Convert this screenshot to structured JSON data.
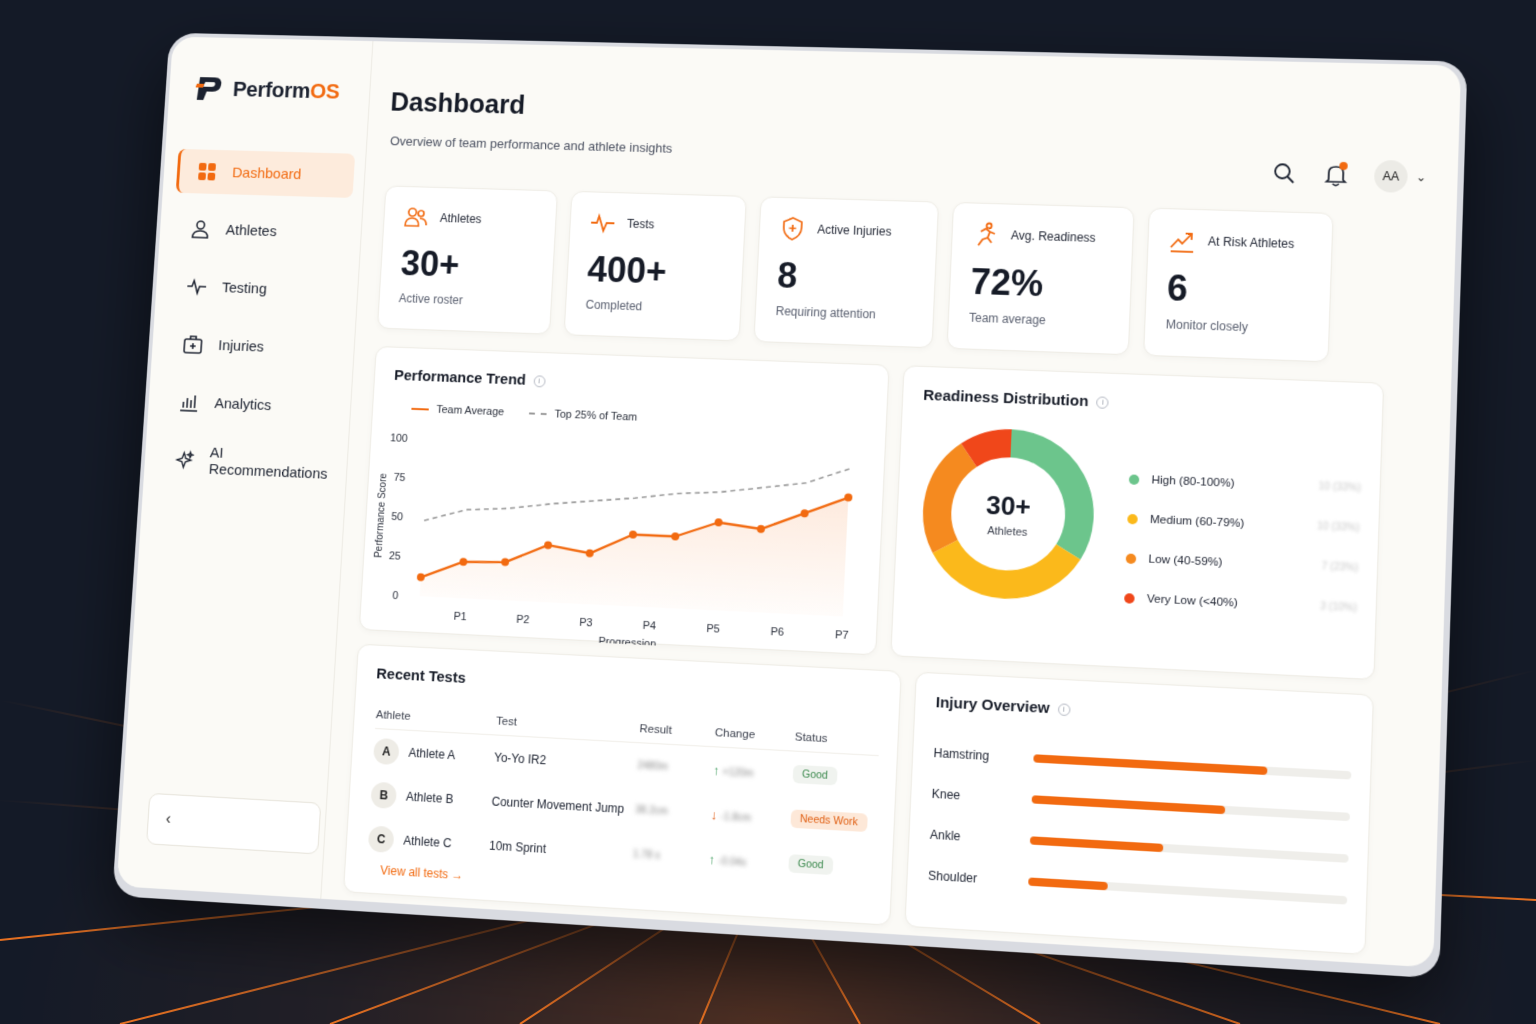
{
  "app": {
    "logo_main": "Perform",
    "logo_accent": "OS"
  },
  "colors": {
    "accent": "#f26a10",
    "high": "#6cc58c",
    "medium": "#fbb91b",
    "low": "#f58a1f",
    "very_low": "#f0471a"
  },
  "sidebar": {
    "items": [
      {
        "label": "Dashboard",
        "icon": "grid-icon",
        "active": true
      },
      {
        "label": "Athletes",
        "icon": "user-icon"
      },
      {
        "label": "Testing",
        "icon": "pulse-icon"
      },
      {
        "label": "Injuries",
        "icon": "medkit-icon"
      },
      {
        "label": "Analytics",
        "icon": "bar-chart-icon"
      },
      {
        "label": "AI Recommendations",
        "icon": "sparkle-icon"
      }
    ],
    "collapse_glyph": "‹"
  },
  "header": {
    "title": "Dashboard",
    "subtitle": "Overview of team performance and athlete insights",
    "avatar": "AA",
    "dropdown_glyph": "⌄"
  },
  "stats": [
    {
      "label": "Athletes",
      "value": "30+",
      "caption": "Active roster",
      "icon": "users-icon"
    },
    {
      "label": "Tests",
      "value": "400+",
      "caption": "Completed",
      "icon": "pulse-icon"
    },
    {
      "label": "Active Injuries",
      "value": "8",
      "caption": "Requiring attention",
      "icon": "shield-icon"
    },
    {
      "label": "Avg. Readiness",
      "value": "72%",
      "caption": "Team average",
      "icon": "runner-icon"
    },
    {
      "label": "At Risk Athletes",
      "value": "6",
      "caption": "Monitor closely",
      "icon": "trend-up-icon"
    }
  ],
  "performance": {
    "title": "Performance Trend",
    "info": "i",
    "legend": {
      "team": "Team Average",
      "top": "Top 25% of Team"
    }
  },
  "chart_data": {
    "type": "line",
    "title": "Performance Trend",
    "xlabel": "Progression",
    "ylabel": "Performance Score",
    "ylim": [
      0,
      100
    ],
    "yticks": [
      "100",
      "75",
      "50",
      "25",
      "0"
    ],
    "xtick_labels": [
      "P1",
      "P2",
      "P3",
      "P4",
      "P5",
      "P6",
      "P7"
    ],
    "x": [
      0,
      1,
      2,
      3,
      4,
      5,
      6,
      7,
      8,
      9,
      10
    ],
    "series": [
      {
        "name": "Team Average",
        "style": "solid",
        "color": "#f26a10",
        "values": [
          12,
          23,
          24,
          36,
          32,
          45,
          45,
          55,
          52,
          63,
          74
        ]
      },
      {
        "name": "Top 25% of Team",
        "style": "dashed",
        "color": "#9a9a9a",
        "values": [
          48,
          56,
          58,
          62,
          65,
          68,
          72,
          74,
          78,
          82,
          92
        ]
      }
    ],
    "legend_position": "top-left",
    "grid": false
  },
  "readiness": {
    "title": "Readiness Distribution",
    "info": "i",
    "center_value": "30+",
    "center_label": "Athletes",
    "segments": [
      {
        "label": "High (80-100%)",
        "value": 10,
        "count": "10 (33%)",
        "color": "#6cc58c"
      },
      {
        "label": "Medium (60-79%)",
        "value": 10,
        "count": "10 (33%)",
        "color": "#fbb91b"
      },
      {
        "label": "Low (40-59%)",
        "value": 7,
        "count": "7 (23%)",
        "color": "#f58a1f"
      },
      {
        "label": "Very Low (<40%)",
        "value": 3,
        "count": "3 (10%)",
        "color": "#f0471a"
      }
    ]
  },
  "recent_tests": {
    "title": "Recent Tests",
    "columns": [
      "Athlete",
      "Test",
      "Result",
      "Change",
      "Status"
    ],
    "rows": [
      {
        "initial": "A",
        "athlete": "Athlete A",
        "test": "Yo-Yo IR2",
        "result": "2480m",
        "change_dir": "↑",
        "change": "+120m",
        "status": "Good",
        "status_type": "good"
      },
      {
        "initial": "B",
        "athlete": "Athlete B",
        "test": "Counter Movement Jump",
        "result": "38.2cm",
        "change_dir": "↓",
        "change": "-1.8cm",
        "status": "Needs Work",
        "status_type": "needs"
      },
      {
        "initial": "C",
        "athlete": "Athlete C",
        "test": "10m Sprint",
        "result": "1.78 s",
        "change_dir": "↑",
        "change": "-0.04s",
        "status": "Good",
        "status_type": "good"
      }
    ],
    "view_all": "View all tests →"
  },
  "injury": {
    "title": "Injury Overview",
    "info": "i",
    "items": [
      {
        "label": "Hamstring",
        "fraction": 0.74
      },
      {
        "label": "Knee",
        "fraction": 0.61
      },
      {
        "label": "Ankle",
        "fraction": 0.42
      },
      {
        "label": "Shoulder",
        "fraction": 0.25
      }
    ]
  }
}
